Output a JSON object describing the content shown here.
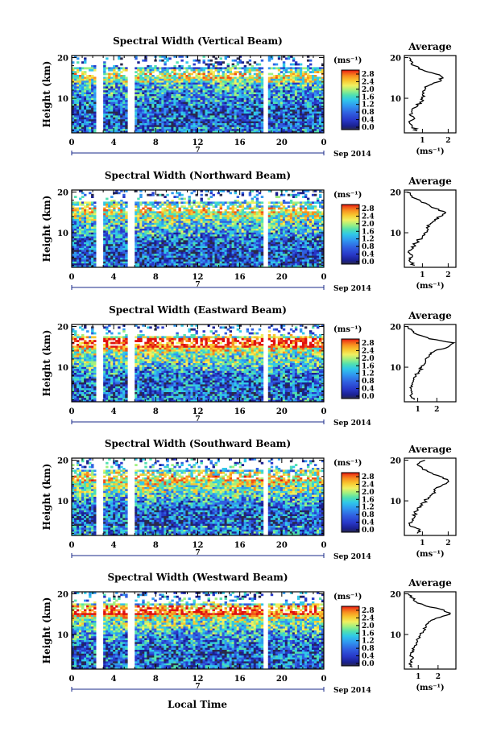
{
  "figure": {
    "xlabel": "Local Time",
    "date_label": "Sep 2014",
    "day_label": "7",
    "unit_label": "(ms⁻¹)",
    "avg_title": "Average",
    "avg_xlabel": "(ms⁻¹)",
    "ylabel": "Height (km)"
  },
  "colorbar": {
    "ticks": [
      "2.8",
      "2.4",
      "2.0",
      "1.6",
      "1.2",
      "0.8",
      "0.4",
      "0.0"
    ],
    "colors": [
      "#e01010",
      "#f05018",
      "#f89020",
      "#f8c830",
      "#f0f060",
      "#a0f080",
      "#50e0b0",
      "#30c8e8",
      "#3098f0",
      "#3060e0",
      "#2838c8",
      "#1a2090",
      "#2a2a4a"
    ]
  },
  "chart_data": [
    {
      "type": "heatmap",
      "title": "Spectral Width (Vertical Beam)",
      "ylabel": "Height (km)",
      "x_ticks": [
        "0",
        "4",
        "8",
        "12",
        "16",
        "20",
        "0"
      ],
      "y_ticks": [
        "20",
        "10"
      ],
      "xlim": [
        0,
        24
      ],
      "ylim": [
        1.5,
        20.5
      ],
      "colorbar_range": [
        0.0,
        2.8
      ],
      "data_gaps_hours": [
        [
          2.3,
          2.9
        ],
        [
          5.4,
          5.9
        ],
        [
          18.2,
          18.7
        ]
      ],
      "average_profile": {
        "title": "Average",
        "xlabel": "(ms⁻¹)",
        "x_ticks": [
          "1",
          "2"
        ],
        "y_ticks": [
          "20",
          "10"
        ],
        "xlim": [
          0.3,
          2.3
        ],
        "height_km": [
          2,
          3,
          4,
          5,
          6,
          7,
          8,
          9,
          10,
          11,
          12,
          13,
          14,
          15,
          16,
          17,
          18,
          19,
          20
        ],
        "values": [
          0.8,
          0.6,
          0.5,
          0.7,
          0.5,
          0.6,
          0.8,
          0.9,
          1.0,
          1.0,
          1.1,
          1.2,
          1.6,
          1.8,
          1.5,
          1.0,
          0.7,
          0.6,
          0.5
        ]
      }
    },
    {
      "type": "heatmap",
      "title": "Spectral Width (Northward Beam)",
      "ylabel": "Height (km)",
      "x_ticks": [
        "0",
        "4",
        "8",
        "12",
        "16",
        "20",
        "0"
      ],
      "y_ticks": [
        "20",
        "10"
      ],
      "xlim": [
        0,
        24
      ],
      "ylim": [
        1.5,
        20.5
      ],
      "colorbar_range": [
        0.0,
        2.8
      ],
      "data_gaps_hours": [
        [
          2.3,
          2.9
        ],
        [
          5.4,
          5.9
        ],
        [
          18.2,
          18.7
        ]
      ],
      "average_profile": {
        "title": "Average",
        "xlabel": "(ms⁻¹)",
        "x_ticks": [
          "1",
          "2"
        ],
        "y_ticks": [
          "20",
          "10"
        ],
        "xlim": [
          0.3,
          2.3
        ],
        "height_km": [
          2,
          3,
          4,
          5,
          6,
          7,
          8,
          9,
          10,
          11,
          12,
          13,
          14,
          15,
          16,
          17,
          18,
          19,
          20
        ],
        "values": [
          0.7,
          0.5,
          0.6,
          0.5,
          0.6,
          0.7,
          0.8,
          1.0,
          1.1,
          1.2,
          1.3,
          1.5,
          1.7,
          1.9,
          1.5,
          1.2,
          0.9,
          0.6,
          0.4
        ]
      }
    },
    {
      "type": "heatmap",
      "title": "Spectral Width (Eastward Beam)",
      "ylabel": "Height (km)",
      "x_ticks": [
        "0",
        "4",
        "8",
        "12",
        "16",
        "20",
        "0"
      ],
      "y_ticks": [
        "20",
        "10"
      ],
      "xlim": [
        0,
        24
      ],
      "ylim": [
        1.5,
        20.5
      ],
      "colorbar_range": [
        0.0,
        2.8
      ],
      "data_gaps_hours": [
        [
          2.3,
          2.9
        ],
        [
          5.4,
          5.9
        ],
        [
          18.2,
          18.7
        ]
      ],
      "average_profile": {
        "title": "Average",
        "xlabel": "",
        "x_ticks": [
          "1",
          "2"
        ],
        "y_ticks": [
          "20",
          "10"
        ],
        "xlim": [
          0.3,
          3.0
        ],
        "height_km": [
          2,
          3,
          4,
          5,
          6,
          7,
          8,
          9,
          10,
          11,
          12,
          13,
          14,
          15,
          16,
          17,
          18,
          19,
          20
        ],
        "values": [
          0.8,
          0.6,
          0.7,
          0.6,
          0.7,
          0.8,
          0.9,
          1.1,
          1.2,
          1.4,
          1.4,
          1.6,
          1.9,
          2.6,
          2.9,
          1.6,
          1.0,
          0.7,
          0.5
        ]
      }
    },
    {
      "type": "heatmap",
      "title": "Spectral Width (Southward Beam)",
      "ylabel": "Height (km)",
      "x_ticks": [
        "0",
        "4",
        "8",
        "12",
        "16",
        "20",
        "0"
      ],
      "y_ticks": [
        "20",
        "10"
      ],
      "xlim": [
        0,
        24
      ],
      "ylim": [
        1.5,
        20.5
      ],
      "colorbar_range": [
        0.0,
        2.8
      ],
      "data_gaps_hours": [
        [
          2.3,
          2.9
        ],
        [
          5.4,
          5.9
        ],
        [
          18.2,
          18.7
        ]
      ],
      "average_profile": {
        "title": "Average",
        "xlabel": "(ms⁻¹)",
        "x_ticks": [
          "1",
          "2"
        ],
        "y_ticks": [
          "20",
          "10"
        ],
        "xlim": [
          0.3,
          2.3
        ],
        "height_km": [
          2,
          3,
          4,
          5,
          6,
          7,
          8,
          9,
          10,
          11,
          12,
          13,
          14,
          15,
          16,
          17,
          18,
          19,
          20
        ],
        "values": [
          0.8,
          0.9,
          0.5,
          0.6,
          0.7,
          0.7,
          0.8,
          1.0,
          1.1,
          1.3,
          1.5,
          1.5,
          1.8,
          2.0,
          1.7,
          1.3,
          1.0,
          0.8,
          1.1
        ]
      }
    },
    {
      "type": "heatmap",
      "title": "Spectral Width (Westward Beam)",
      "ylabel": "Height (km)",
      "x_ticks": [
        "0",
        "4",
        "8",
        "12",
        "16",
        "20",
        "0"
      ],
      "y_ticks": [
        "20",
        "10"
      ],
      "xlim": [
        0,
        24
      ],
      "ylim": [
        1.5,
        20.5
      ],
      "colorbar_range": [
        0.0,
        2.8
      ],
      "data_gaps_hours": [
        [
          2.3,
          2.9
        ],
        [
          5.4,
          5.9
        ],
        [
          18.2,
          18.7
        ]
      ],
      "average_profile": {
        "title": "Average",
        "xlabel": "(ms⁻¹)",
        "x_ticks": [
          "1",
          "2"
        ],
        "y_ticks": [
          "20",
          "10"
        ],
        "xlim": [
          0.3,
          2.9
        ],
        "height_km": [
          2,
          3,
          4,
          5,
          6,
          7,
          8,
          9,
          10,
          11,
          12,
          13,
          14,
          15,
          16,
          17,
          18,
          19,
          20
        ],
        "values": [
          0.7,
          0.6,
          0.7,
          0.6,
          0.7,
          0.8,
          0.9,
          1.0,
          1.1,
          1.3,
          1.4,
          1.5,
          1.9,
          2.6,
          2.3,
          1.4,
          0.9,
          0.7,
          0.5
        ]
      }
    }
  ]
}
